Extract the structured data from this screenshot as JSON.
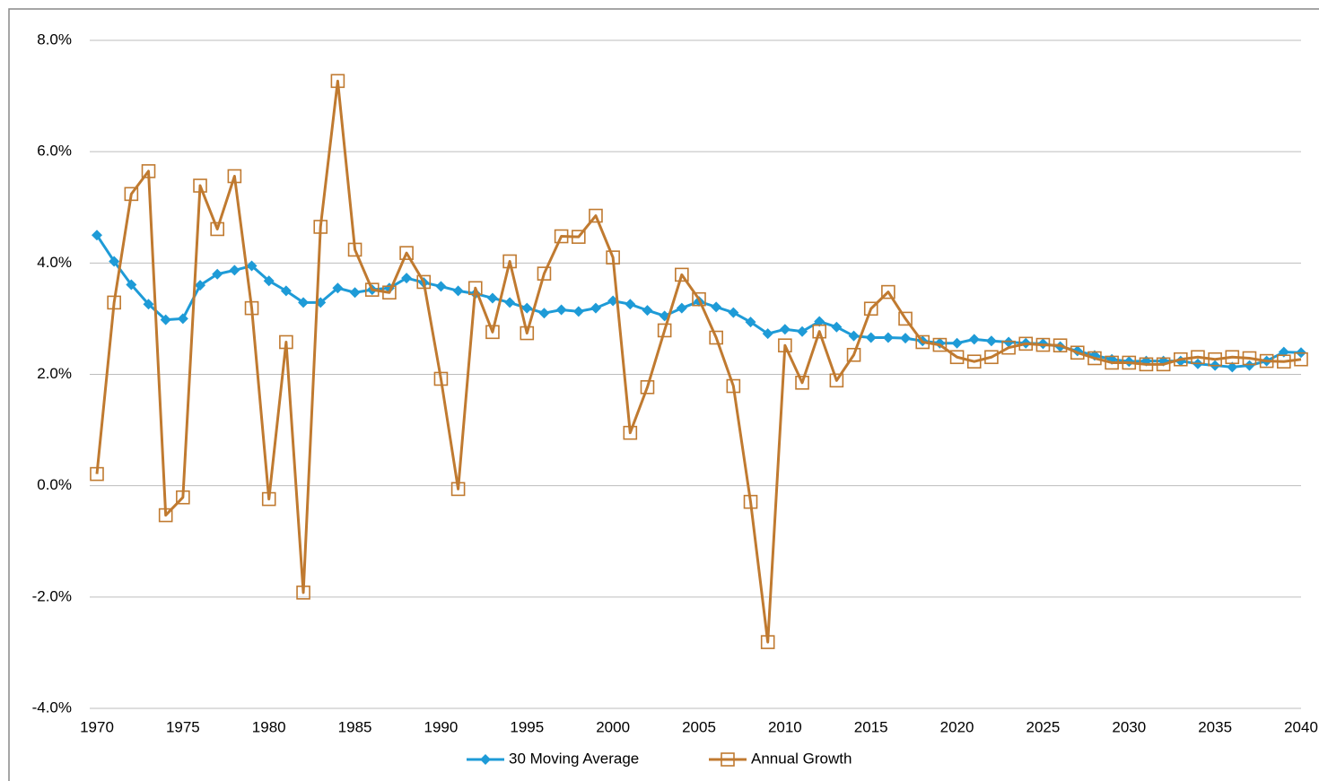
{
  "chart_data": {
    "type": "line",
    "x": [
      1970,
      1971,
      1972,
      1973,
      1974,
      1975,
      1976,
      1977,
      1978,
      1979,
      1980,
      1981,
      1982,
      1983,
      1984,
      1985,
      1986,
      1987,
      1988,
      1989,
      1990,
      1991,
      1992,
      1993,
      1994,
      1995,
      1996,
      1997,
      1998,
      1999,
      2000,
      2001,
      2002,
      2003,
      2004,
      2005,
      2006,
      2007,
      2008,
      2009,
      2010,
      2011,
      2012,
      2013,
      2014,
      2015,
      2016,
      2017,
      2018,
      2019,
      2020,
      2021,
      2022,
      2023,
      2024,
      2025,
      2026,
      2027,
      2028,
      2029,
      2030,
      2031,
      2032,
      2033,
      2034,
      2035,
      2036,
      2037,
      2038,
      2039,
      2040
    ],
    "xlim": [
      1970,
      2040
    ],
    "xticks": [
      1970,
      1975,
      1980,
      1985,
      1990,
      1995,
      2000,
      2005,
      2010,
      2015,
      2020,
      2025,
      2030,
      2035,
      2040
    ],
    "ylim": [
      -4,
      8
    ],
    "yticks": [
      {
        "value": -4,
        "label": "-4.0%"
      },
      {
        "value": -2,
        "label": "-2.0%"
      },
      {
        "value": 0,
        "label": "0.0%"
      },
      {
        "value": 2,
        "label": "2.0%"
      },
      {
        "value": 4,
        "label": "4.0%"
      },
      {
        "value": 6,
        "label": "6.0%"
      },
      {
        "value": 8,
        "label": "8.0%"
      }
    ],
    "grid": true,
    "legend": "bottom",
    "series": [
      {
        "name": "30 Moving Average",
        "color": "#1e9bd7",
        "marker": "diamond",
        "values": [
          4.5,
          4.03,
          3.61,
          3.26,
          2.98,
          3.0,
          3.6,
          3.8,
          3.87,
          3.95,
          3.68,
          3.5,
          3.29,
          3.29,
          3.55,
          3.47,
          3.52,
          3.55,
          3.73,
          3.65,
          3.58,
          3.5,
          3.45,
          3.37,
          3.29,
          3.19,
          3.1,
          3.16,
          3.13,
          3.19,
          3.32,
          3.26,
          3.15,
          3.05,
          3.19,
          3.31,
          3.21,
          3.11,
          2.94,
          2.73,
          2.81,
          2.77,
          2.95,
          2.85,
          2.69,
          2.66,
          2.66,
          2.65,
          2.6,
          2.56,
          2.56,
          2.63,
          2.6,
          2.58,
          2.56,
          2.55,
          2.5,
          2.42,
          2.34,
          2.27,
          2.23,
          2.24,
          2.24,
          2.24,
          2.19,
          2.16,
          2.13,
          2.16,
          2.24,
          2.4,
          2.39
        ]
      },
      {
        "name": "Annual Growth",
        "color": "#c07a30",
        "marker": "square",
        "values": [
          0.21,
          3.29,
          5.24,
          5.65,
          -0.53,
          -0.21,
          5.39,
          4.61,
          5.56,
          3.19,
          -0.24,
          2.58,
          -1.92,
          4.65,
          7.27,
          4.24,
          3.52,
          3.47,
          4.18,
          3.66,
          1.92,
          -0.06,
          3.55,
          2.76,
          4.03,
          2.74,
          3.81,
          4.48,
          4.47,
          4.85,
          4.1,
          0.95,
          1.77,
          2.79,
          3.79,
          3.35,
          2.66,
          1.79,
          -0.29,
          -2.81,
          2.52,
          1.85,
          2.77,
          1.89,
          2.35,
          3.18,
          3.48,
          3.0,
          2.58,
          2.53,
          2.31,
          2.23,
          2.31,
          2.48,
          2.55,
          2.53,
          2.52,
          2.39,
          2.29,
          2.21,
          2.21,
          2.18,
          2.18,
          2.27,
          2.31,
          2.27,
          2.31,
          2.29,
          2.24,
          2.23,
          2.27
        ]
      }
    ]
  }
}
